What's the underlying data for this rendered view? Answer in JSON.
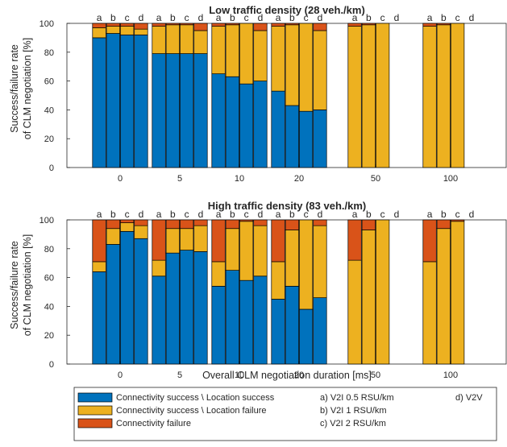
{
  "chart_data": [
    {
      "type": "bar",
      "stacked": true,
      "title": "Low traffic density (28 veh./km)",
      "ylabel_line1": "Success/failure rate",
      "ylabel_line2": "of CLM negotiation [%]",
      "ylim": [
        0,
        100
      ],
      "yticks": [
        "0",
        "20",
        "40",
        "60",
        "80",
        "100"
      ],
      "groups": [
        "0",
        "5",
        "10",
        "20",
        "50",
        "100"
      ],
      "bar_letters": [
        "a",
        "b",
        "c",
        "d"
      ],
      "bars": [
        [
          [
            90,
            7,
            3
          ],
          [
            93,
            5,
            2
          ],
          [
            92,
            6,
            2
          ],
          [
            92,
            4,
            4
          ]
        ],
        [
          [
            79,
            19,
            2
          ],
          [
            79,
            20,
            1
          ],
          [
            79,
            20,
            1
          ],
          [
            79,
            16,
            5
          ]
        ],
        [
          [
            65,
            33,
            2
          ],
          [
            63,
            36,
            1
          ],
          [
            58,
            42,
            0
          ],
          [
            60,
            35,
            5
          ]
        ],
        [
          [
            53,
            45,
            2
          ],
          [
            43,
            56,
            1
          ],
          [
            39,
            61,
            0
          ],
          [
            40,
            55,
            5
          ]
        ],
        [
          [
            0,
            98,
            2
          ],
          [
            0,
            99,
            1
          ],
          [
            0,
            100,
            0
          ],
          null
        ],
        [
          [
            0,
            98,
            2
          ],
          [
            0,
            99,
            1
          ],
          [
            0,
            100,
            0
          ],
          null
        ]
      ]
    },
    {
      "type": "bar",
      "stacked": true,
      "title": "High traffic density (83 veh./km)",
      "ylabel_line1": "Success/failure rate",
      "ylabel_line2": "of CLM negotiation [%]",
      "xlabel": "Overall CLM negotiation duration [ms]",
      "ylim": [
        0,
        100
      ],
      "yticks": [
        "0",
        "20",
        "40",
        "60",
        "80",
        "100"
      ],
      "groups": [
        "0",
        "5",
        "10",
        "20",
        "50",
        "100"
      ],
      "bar_letters": [
        "a",
        "b",
        "c",
        "d"
      ],
      "bars": [
        [
          [
            64,
            7,
            29
          ],
          [
            83,
            11,
            6
          ],
          [
            92,
            6,
            2
          ],
          [
            87,
            9,
            4
          ]
        ],
        [
          [
            61,
            11,
            28
          ],
          [
            77,
            17,
            6
          ],
          [
            79,
            15,
            6
          ],
          [
            78,
            18,
            4
          ]
        ],
        [
          [
            54,
            17,
            29
          ],
          [
            65,
            29,
            6
          ],
          [
            58,
            41,
            1
          ],
          [
            61,
            35,
            4
          ]
        ],
        [
          [
            45,
            26,
            29
          ],
          [
            54,
            39,
            7
          ],
          [
            38,
            62,
            0
          ],
          [
            46,
            50,
            4
          ]
        ],
        [
          [
            0,
            72,
            28
          ],
          [
            0,
            93,
            7
          ],
          [
            0,
            100,
            0
          ],
          null
        ],
        [
          [
            0,
            71,
            29
          ],
          [
            0,
            94,
            6
          ],
          [
            0,
            99,
            1
          ],
          null
        ]
      ]
    }
  ],
  "colors": {
    "loc_success": "#0072BD",
    "loc_failure": "#EDB120",
    "conn_failure": "#D95319"
  },
  "legend": {
    "series": [
      "Connectivity success \\ Location success",
      "Connectivity success \\ Location failure",
      "Connectivity failure"
    ],
    "variants": [
      "a) V2I 0.5 RSU/km",
      "b) V2I 1 RSU/km",
      "c) V2I 2 RSU/km",
      "d) V2V"
    ]
  }
}
